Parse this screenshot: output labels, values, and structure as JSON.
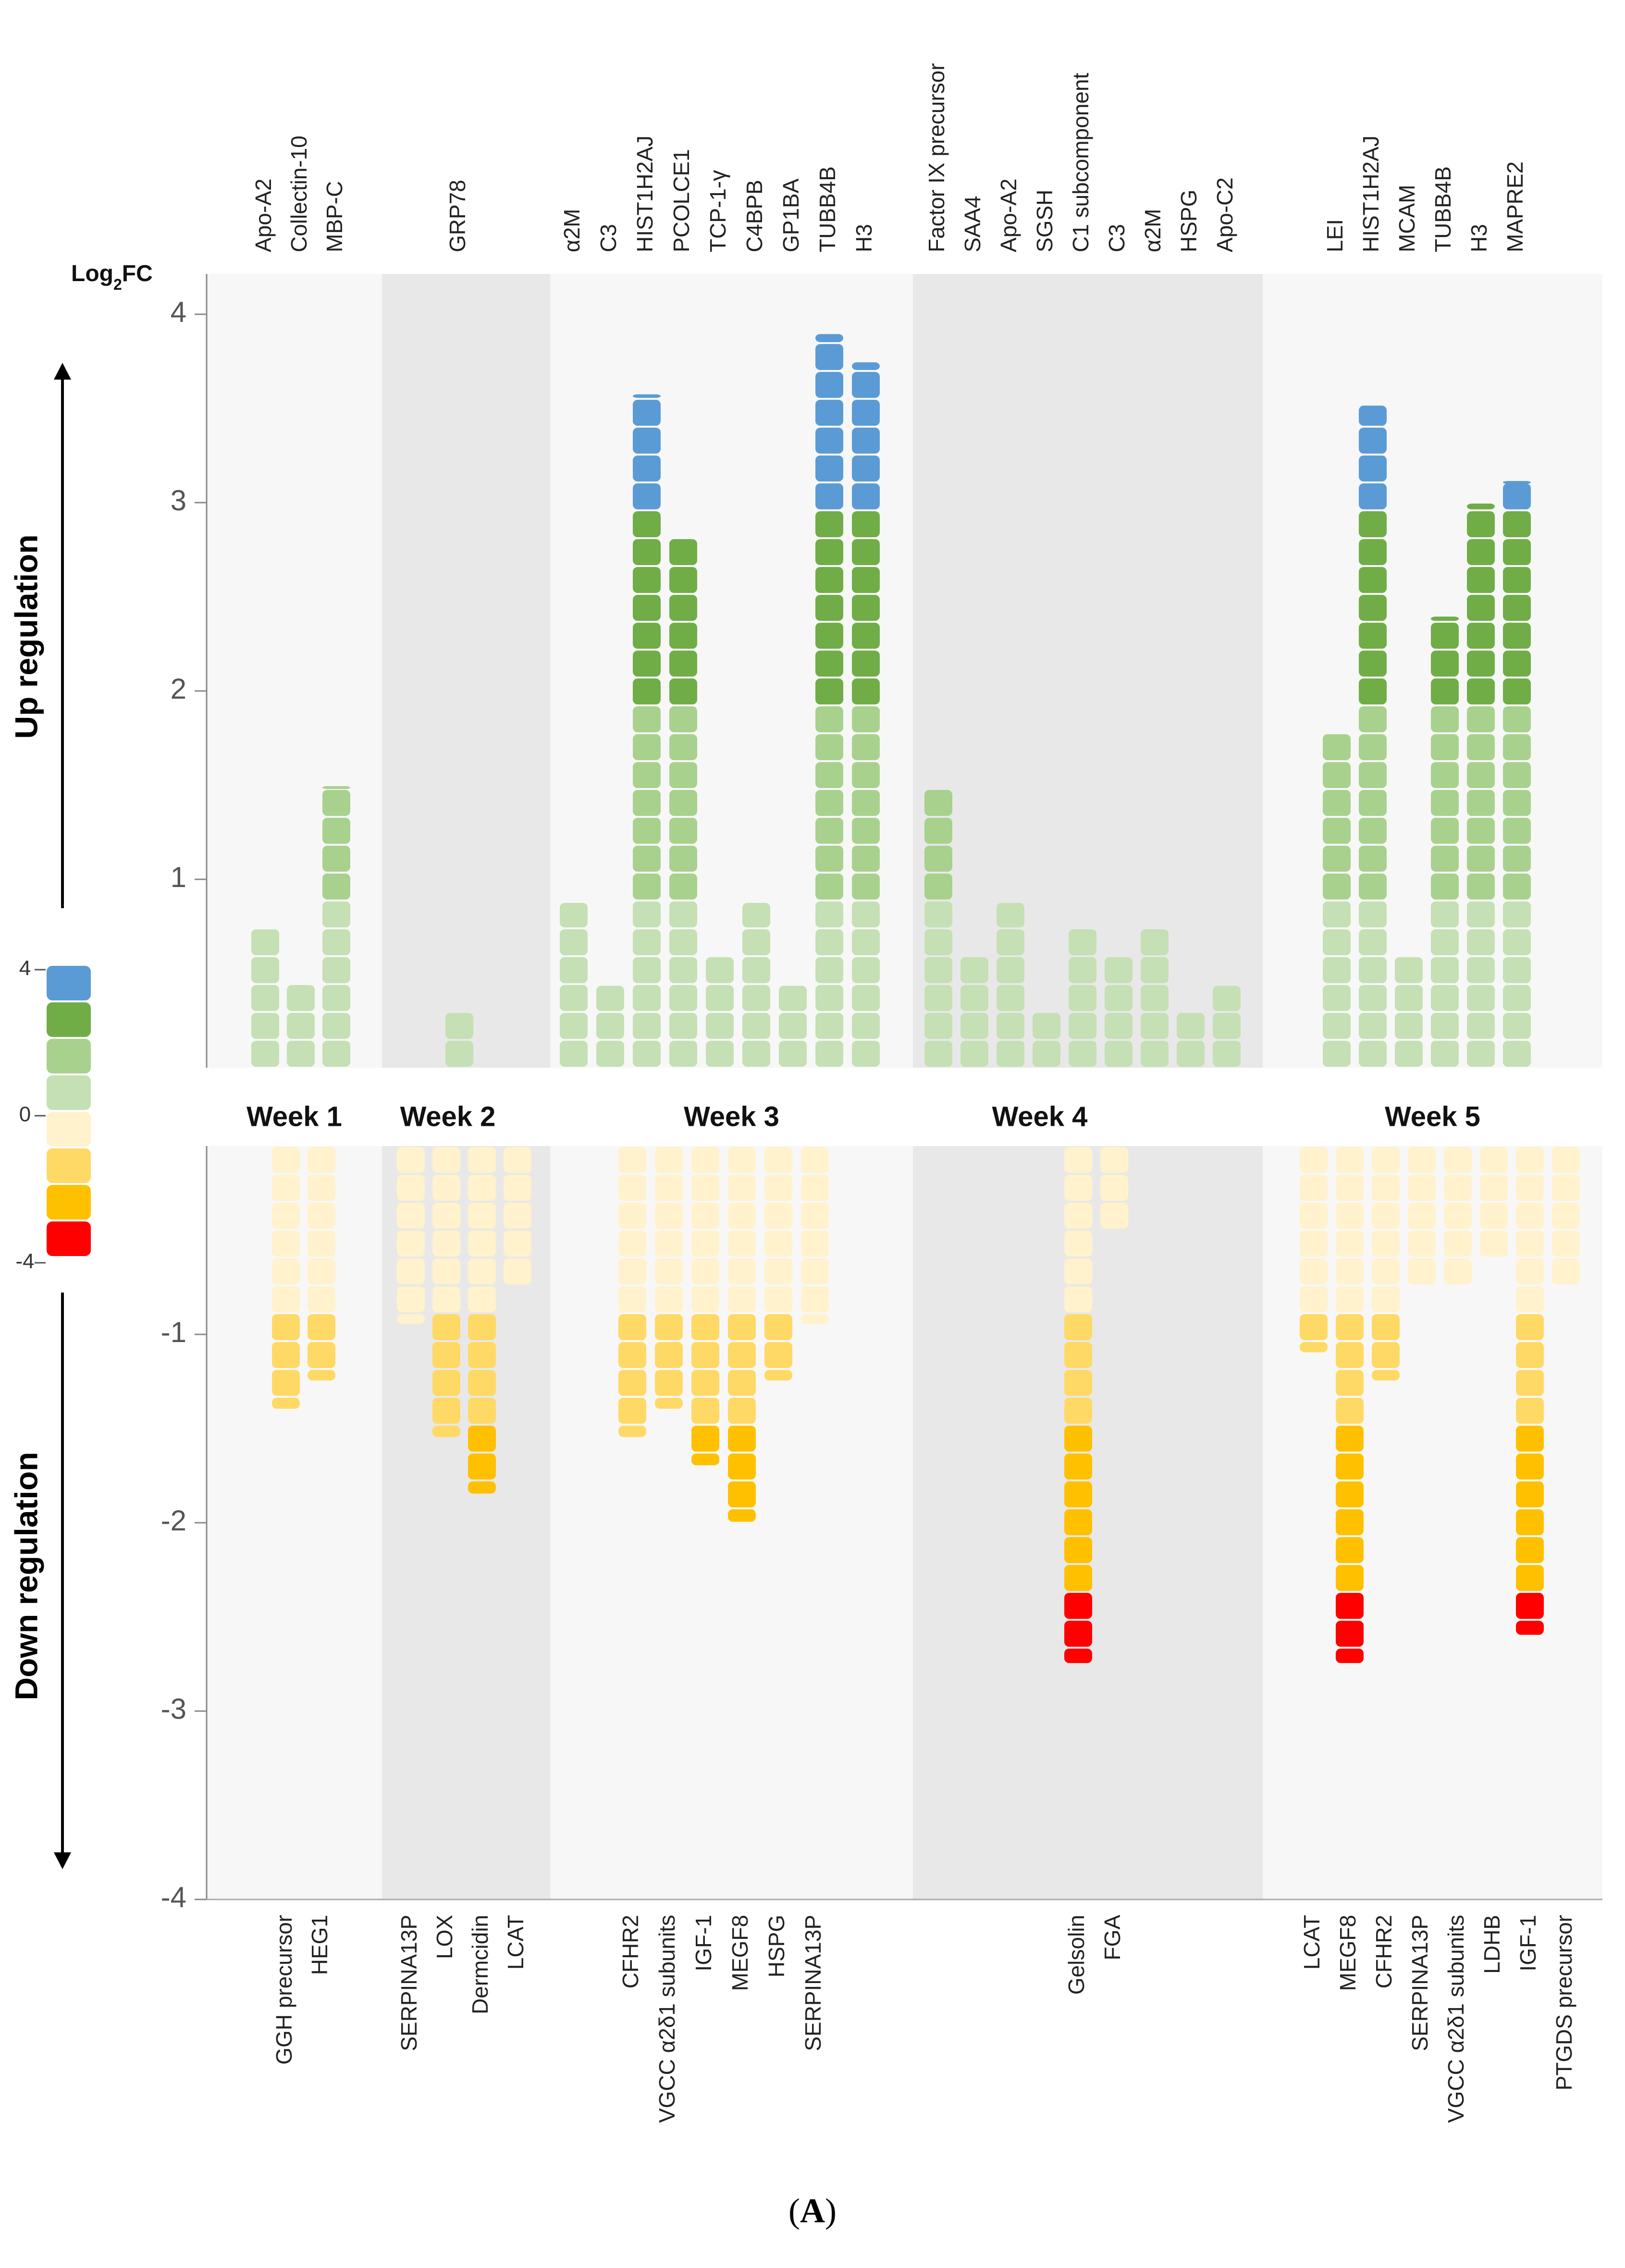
{
  "chart_data": {
    "type": "bar",
    "ylabel": "Log2FC",
    "ylabel_main": "Log",
    "ylabel_sub": "2",
    "ylabel_suffix": "FC",
    "ylim": [
      -4,
      4
    ],
    "yticks": [
      {
        "value": 4,
        "label": "4"
      },
      {
        "value": 3,
        "label": "3"
      },
      {
        "value": 2,
        "label": "2"
      },
      {
        "value": 1,
        "label": "1"
      },
      {
        "value": -1,
        "label": "-1"
      },
      {
        "value": -2,
        "label": "-2"
      },
      {
        "value": -3,
        "label": "-3"
      },
      {
        "value": -4,
        "label": "-4"
      }
    ],
    "up_label": "Up regulation",
    "down_label": "Down regulation",
    "legend": {
      "max_label": "4",
      "zero_label": "0",
      "min_label": "-4",
      "colors": [
        "#5b9bd5",
        "#70ad47",
        "#a9d18e",
        "#c5e0b4",
        "#fff2cc",
        "#ffd966",
        "#ffc000",
        "#ff0000"
      ]
    },
    "bin_colors": {
      "up_low": "#c5e0b4",
      "up_mid": "#a9d18e",
      "up_high": "#70ad47",
      "up_max": "#5b9bd5",
      "down_low": "#fff2cc",
      "down_mid": "#ffd966",
      "down_high": "#ffc000",
      "down_max": "#ff0000"
    },
    "weeks": [
      {
        "label": "Week 1",
        "up": [
          {
            "name": "Apo-A2",
            "value": 0.75
          },
          {
            "name": "Collectin-10",
            "value": 0.45
          },
          {
            "name": "MBP-C",
            "value": 1.5
          }
        ],
        "down": [
          {
            "name": "GGH precursor",
            "value": -1.4
          },
          {
            "name": "HEG1",
            "value": -1.25
          }
        ]
      },
      {
        "label": "Week 2",
        "up": [
          {
            "name": "GRP78",
            "value": 0.3
          }
        ],
        "down": [
          {
            "name": "SERPINA13P",
            "value": -0.95
          },
          {
            "name": "LOX",
            "value": -1.55
          },
          {
            "name": "Dermcidin",
            "value": -1.85
          },
          {
            "name": "LCAT",
            "value": -0.75
          }
        ]
      },
      {
        "label": "Week 3",
        "up": [
          {
            "name": "α2M",
            "value": 0.88
          },
          {
            "name": "C3",
            "value": 0.44
          },
          {
            "name": "HIST1H2AJ",
            "value": 3.58
          },
          {
            "name": "PCOLCE1",
            "value": 2.82
          },
          {
            "name": "TCP-1-γ",
            "value": 0.6
          },
          {
            "name": "C4BPB",
            "value": 0.88
          },
          {
            "name": "GP1BA",
            "value": 0.44
          },
          {
            "name": "TUBB4B",
            "value": 3.9
          },
          {
            "name": "H3",
            "value": 3.75
          }
        ],
        "down": [
          {
            "name": "CFHR2",
            "value": -1.55
          },
          {
            "name": "VGCC α2δ1 subunits",
            "value": -1.4
          },
          {
            "name": "IGF-1",
            "value": -1.7
          },
          {
            "name": "MEGF8",
            "value": -2.0
          },
          {
            "name": "HSPG",
            "value": -1.25
          },
          {
            "name": "SERPINA13P",
            "value": -0.95
          }
        ]
      },
      {
        "label": "Week 4",
        "up": [
          {
            "name": "Factor IX precursor",
            "value": 1.48
          },
          {
            "name": "SAA4",
            "value": 0.6
          },
          {
            "name": "Apo-A2",
            "value": 0.88
          },
          {
            "name": "SGSH",
            "value": 0.3
          },
          {
            "name": "C1 subcomponent",
            "value": 0.74
          },
          {
            "name": "C3",
            "value": 0.6
          },
          {
            "name": "α2M",
            "value": 0.74
          },
          {
            "name": "HSPG",
            "value": 0.3
          },
          {
            "name": "Apo-C2",
            "value": 0.44
          }
        ],
        "down": [
          {
            "name": "Gelsolin",
            "value": -2.75
          },
          {
            "name": "FGA",
            "value": -0.45
          }
        ]
      },
      {
        "label": "Week 5",
        "up": [
          {
            "name": "LEI",
            "value": 1.78
          },
          {
            "name": "HIST1H2AJ",
            "value": 3.52
          },
          {
            "name": "MCAM",
            "value": 0.6
          },
          {
            "name": "TUBB4B",
            "value": 2.4
          },
          {
            "name": "H3",
            "value": 3.0
          },
          {
            "name": "MAPRE2",
            "value": 3.12
          }
        ],
        "down": [
          {
            "name": "LCAT",
            "value": -1.1
          },
          {
            "name": "MEGF8",
            "value": -2.75
          },
          {
            "name": "CFHR2",
            "value": -1.25
          },
          {
            "name": "SERPINA13P",
            "value": -0.75
          },
          {
            "name": "VGCC α2δ1 subunits",
            "value": -0.75
          },
          {
            "name": "LDHB",
            "value": -0.6
          },
          {
            "name": "IGF-1",
            "value": -2.6
          },
          {
            "name": "PTGDS precursor",
            "value": -0.75
          }
        ]
      }
    ]
  },
  "caption": {
    "open": "(",
    "letter": "A",
    "close": ")"
  }
}
